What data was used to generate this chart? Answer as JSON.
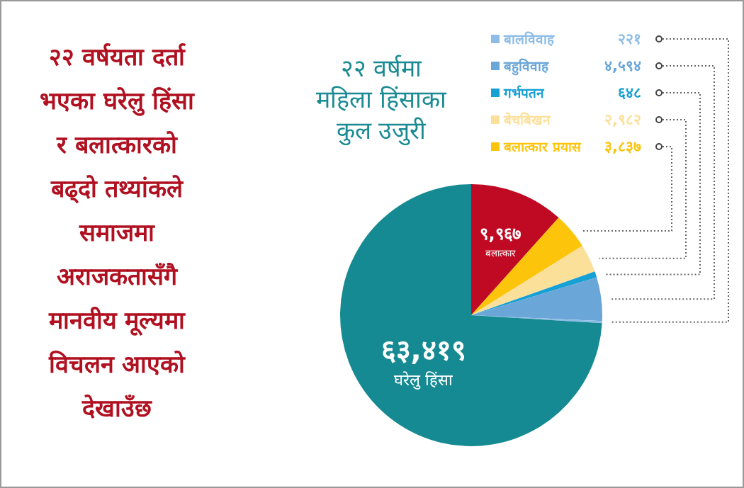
{
  "chart_data": {
    "type": "pie",
    "title": "२२ वर्षमा\nमहिला हिंसाका\nकुल उजुरी",
    "categories": [
      "बलात्कार",
      "बलात्कार प्रयास",
      "बेचबिखन",
      "गर्भपतन",
      "बहुविवाह",
      "बालविवाह",
      "घरेलु हिंसा"
    ],
    "values": [
      9967,
      3837,
      2982,
      648,
      4594,
      221,
      63419
    ],
    "value_labels": [
      "९,९६७",
      "३,८३७",
      "२,९८२",
      "६४८",
      "४,५९४",
      "२२१",
      "६३,४१९"
    ],
    "legend": "top right",
    "colors": [
      "#c00a23",
      "#fdc40c",
      "#fbe09a",
      "#16a0d4",
      "#6aa6d8",
      "#8dbde6",
      "#168a93"
    ],
    "annotations": [
      "२२ वर्षयता दर्ता\nभएका घरेलु हिंसा\nर बलात्कारको\nबढ्दो तथ्यांकले\nसमाजमा\nअराजकतासँगै\nमानवीय मूल्यमा\nविचलन आएको\nदेखाउँछ"
    ]
  }
}
